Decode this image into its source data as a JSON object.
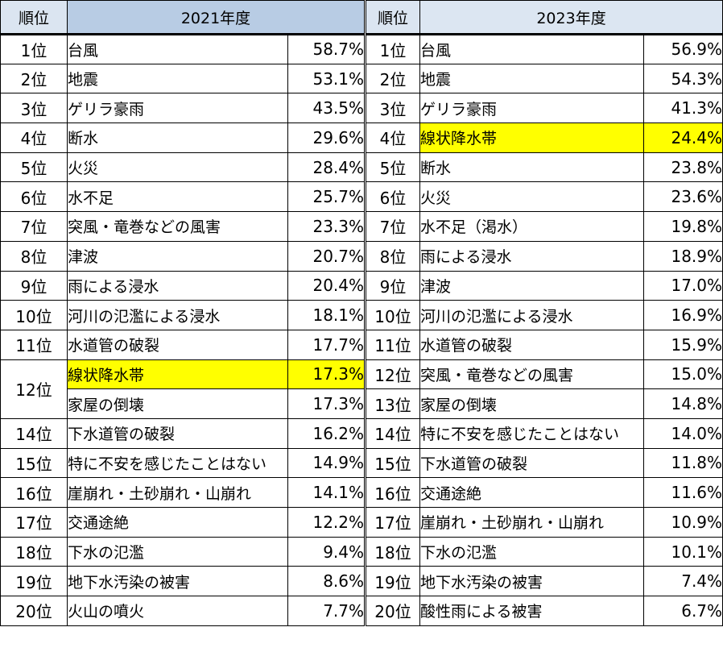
{
  "headers": {
    "rank": "順位",
    "year_left": "2021年度",
    "year_right": "2023年度"
  },
  "highlight_color": "#ffff00",
  "left": [
    {
      "rank": "1位",
      "item": "台風",
      "pct": "58.7%"
    },
    {
      "rank": "2位",
      "item": "地震",
      "pct": "53.1%"
    },
    {
      "rank": "3位",
      "item": "ゲリラ豪雨",
      "pct": "43.5%"
    },
    {
      "rank": "4位",
      "item": "断水",
      "pct": "29.6%"
    },
    {
      "rank": "5位",
      "item": "火災",
      "pct": "28.4%"
    },
    {
      "rank": "6位",
      "item": "水不足",
      "pct": "25.7%"
    },
    {
      "rank": "7位",
      "item": "突風・竜巻などの風害",
      "pct": "23.3%"
    },
    {
      "rank": "8位",
      "item": "津波",
      "pct": "20.7%"
    },
    {
      "rank": "9位",
      "item": "雨による浸水",
      "pct": "20.4%"
    },
    {
      "rank": "10位",
      "item": "河川の氾濫による浸水",
      "pct": "18.1%"
    },
    {
      "rank": "11位",
      "item": "水道管の破裂",
      "pct": "17.7%"
    },
    {
      "rank": "12位",
      "item": "線状降水帯",
      "pct": "17.3%",
      "highlight": true
    },
    {
      "rank": "",
      "item": "家屋の倒壊",
      "pct": "17.3%"
    },
    {
      "rank": "14位",
      "item": "下水道管の破裂",
      "pct": "16.2%"
    },
    {
      "rank": "15位",
      "item": "特に不安を感じたことはない",
      "pct": "14.9%"
    },
    {
      "rank": "16位",
      "item": "崖崩れ・土砂崩れ・山崩れ",
      "pct": "14.1%"
    },
    {
      "rank": "17位",
      "item": "交通途絶",
      "pct": "12.2%"
    },
    {
      "rank": "18位",
      "item": "下水の氾濫",
      "pct": "9.4%"
    },
    {
      "rank": "19位",
      "item": "地下水汚染の被害",
      "pct": "8.6%"
    },
    {
      "rank": "20位",
      "item": "火山の噴火",
      "pct": "7.7%"
    }
  ],
  "right": [
    {
      "rank": "1位",
      "item": "台風",
      "pct": "56.9%"
    },
    {
      "rank": "2位",
      "item": "地震",
      "pct": "54.3%"
    },
    {
      "rank": "3位",
      "item": "ゲリラ豪雨",
      "pct": "41.3%"
    },
    {
      "rank": "4位",
      "item": "線状降水帯",
      "pct": "24.4%",
      "highlight": true
    },
    {
      "rank": "5位",
      "item": "断水",
      "pct": "23.8%"
    },
    {
      "rank": "6位",
      "item": "火災",
      "pct": "23.6%"
    },
    {
      "rank": "7位",
      "item": "水不足（渇水）",
      "pct": "19.8%"
    },
    {
      "rank": "8位",
      "item": "雨による浸水",
      "pct": "18.9%"
    },
    {
      "rank": "9位",
      "item": "津波",
      "pct": "17.0%"
    },
    {
      "rank": "10位",
      "item": "河川の氾濫による浸水",
      "pct": "16.9%"
    },
    {
      "rank": "11位",
      "item": "水道管の破裂",
      "pct": "15.9%"
    },
    {
      "rank": "12位",
      "item": "突風・竜巻などの風害",
      "pct": "15.0%"
    },
    {
      "rank": "13位",
      "item": "家屋の倒壊",
      "pct": "14.8%"
    },
    {
      "rank": "14位",
      "item": "特に不安を感じたことはない",
      "pct": "14.0%"
    },
    {
      "rank": "15位",
      "item": "下水道管の破裂",
      "pct": "11.8%"
    },
    {
      "rank": "16位",
      "item": "交通途絶",
      "pct": "11.6%"
    },
    {
      "rank": "17位",
      "item": "崖崩れ・土砂崩れ・山崩れ",
      "pct": "10.9%"
    },
    {
      "rank": "18位",
      "item": "下水の氾濫",
      "pct": "10.1%"
    },
    {
      "rank": "19位",
      "item": "地下水汚染の被害",
      "pct": "7.4%"
    },
    {
      "rank": "20位",
      "item": "酸性雨による被害",
      "pct": "6.7%"
    }
  ]
}
